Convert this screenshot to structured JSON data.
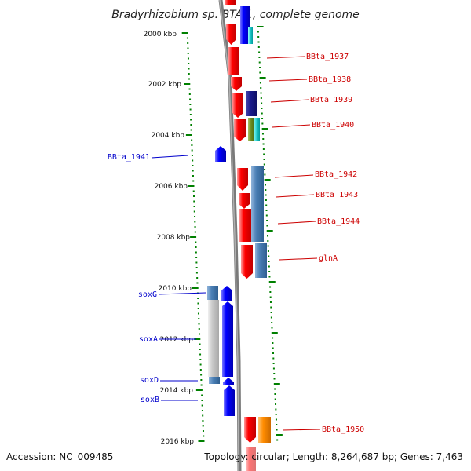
{
  "title": "Bradyrhizobium sp. BTAi1, complete genome",
  "footer": {
    "accession": "Accession: NC_009485",
    "topology": "Topology: circular; Length: 8,264,687 bp; Genes: 7,463"
  },
  "scale_labels": [
    "2000 kbp",
    "2002 kbp",
    "2004 kbp",
    "2006 kbp",
    "2008 kbp",
    "2010 kbp",
    "2012 kbp",
    "2014 kbp",
    "2016 kbp"
  ],
  "gene_labels_right": [
    "BBta_1937",
    "BBta_1938",
    "BBta_1939",
    "BBta_1940",
    "BBta_1942",
    "BBta_1943",
    "BBta_1944",
    "glnA",
    "BBta_1950"
  ],
  "gene_labels_left": [
    "BBta_1941",
    "soxG",
    "soxA",
    "soxD",
    "soxB"
  ],
  "colors": {
    "backbone": "#808080",
    "red_gene": "#ff0000",
    "blue_gene": "#0000ff",
    "steel": "#4a7fb5",
    "navy": "#1a1a8c",
    "orange": "#ff8c00",
    "tick": "#008000",
    "label_red": "#cc0000",
    "label_blue": "#0000cc"
  }
}
